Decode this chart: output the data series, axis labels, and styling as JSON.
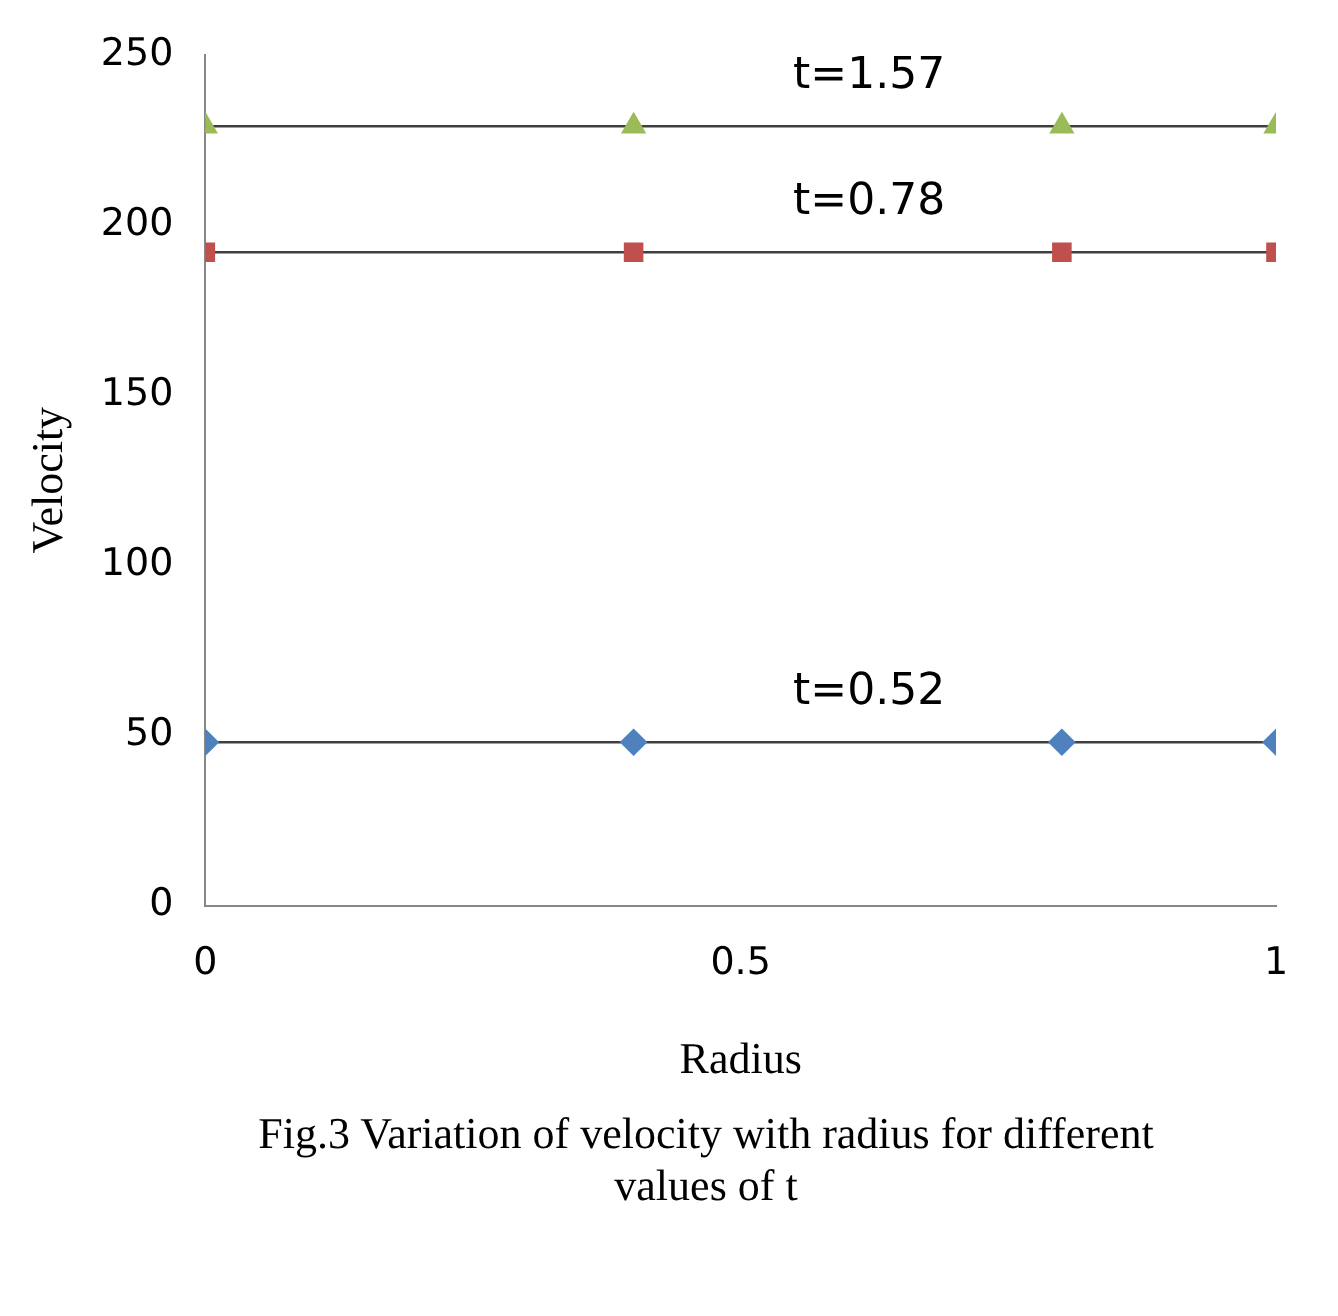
{
  "chart_data": {
    "type": "line",
    "xlabel": "Radius",
    "ylabel": "Velocity",
    "annotations": [
      "Fig.3 Variation of velocity with radius for different values of t"
    ],
    "x": [
      0,
      0.4,
      0.8,
      1
    ],
    "series": [
      {
        "name": "t=0.52",
        "color": "#4f81bd",
        "marker": "diamond",
        "values": [
          48,
          48,
          48,
          48
        ]
      },
      {
        "name": "t=0.78",
        "color": "#c0504d",
        "marker": "square",
        "values": [
          192,
          192,
          192,
          192
        ]
      },
      {
        "name": "t=1.57",
        "color": "#9bbb59",
        "marker": "triangle",
        "values": [
          229,
          229,
          229,
          229
        ]
      }
    ],
    "xlim": [
      0,
      1
    ],
    "xticks": [
      0,
      0.5,
      1
    ],
    "ylim": [
      0,
      250
    ],
    "yticks": [
      0,
      50,
      100,
      150,
      200,
      250
    ],
    "grid": false,
    "legend": false
  }
}
